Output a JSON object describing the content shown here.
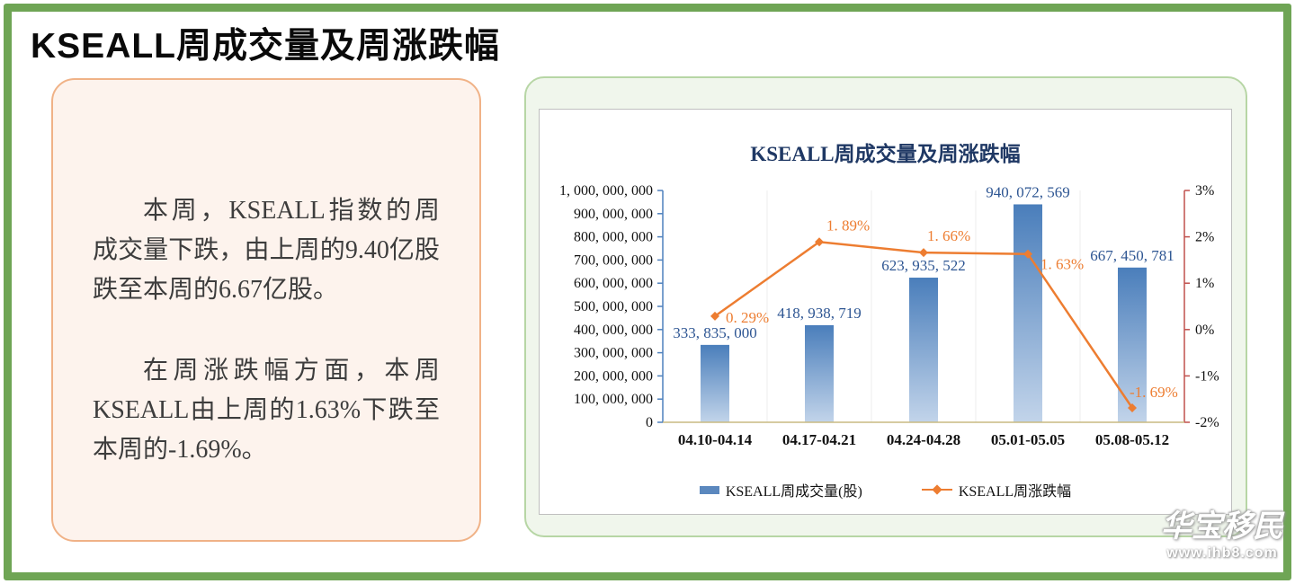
{
  "page": {
    "title": "KSEALL周成交量及周涨跌幅"
  },
  "summary": {
    "p1": "本周，KSEALL指数的周成交量下跌，由上周的9.40亿股跌至本周的6.67亿股。",
    "p2": "在周涨跌幅方面，本周KSEALL由上周的1.63%下跌至本周的-1.69%。"
  },
  "chart_data": {
    "type": "bar",
    "subtype": "bar+line dual-axis",
    "title": "KSEALL周成交量及周涨跌幅",
    "categories": [
      "04.10-04.14",
      "04.17-04.21",
      "04.24-04.28",
      "05.01-05.05",
      "05.08-05.12"
    ],
    "series": [
      {
        "name": "KSEALL周成交量(股)",
        "type": "bar",
        "axis": "left",
        "values": [
          333835000,
          418938719,
          623935522,
          940072569,
          667450781
        ],
        "labels": [
          "333, 835, 000",
          "418, 938, 719",
          "623, 935, 522",
          "940, 072, 569",
          "667, 450, 781"
        ]
      },
      {
        "name": "KSEALL周涨跌幅",
        "type": "line",
        "axis": "right",
        "values": [
          0.29,
          1.89,
          1.66,
          1.63,
          -1.69
        ],
        "labels": [
          "0. 29%",
          "1. 89%",
          "1. 66%",
          "1. 63%",
          "-1. 69%"
        ]
      }
    ],
    "left_axis": {
      "min": 0,
      "max": 1000000000,
      "step": 100000000,
      "tick_labels": [
        "1, 000, 000, 000",
        "900, 000, 000",
        "800, 000, 000",
        "700, 000, 000",
        "600, 000, 000",
        "500, 000, 000",
        "400, 000, 000",
        "300, 000, 000",
        "200, 000, 000",
        "100, 000, 000",
        "0"
      ]
    },
    "right_axis": {
      "min": -2,
      "max": 3,
      "step": 1,
      "tick_labels": [
        "3%",
        "2%",
        "1%",
        "0%",
        "-1%",
        "-2%"
      ]
    },
    "grid": "vertical-only",
    "legend_position": "bottom"
  },
  "colors": {
    "page_border": "#6FA555",
    "card_bg": "#F0F6EC",
    "card_border": "#B7D6A5",
    "summary_bg": "#FDF3ED",
    "summary_border": "#F0B287",
    "bar_top": "#4A7EBB",
    "bar_bottom": "#C2D4EA",
    "bar_label": "#2E5693",
    "line": "#ED7D31",
    "title_navy": "#1F3864",
    "left_axis": "#4F81BD",
    "right_axis": "#C0504D",
    "x_axis": "#C9BA82",
    "gridline": "#ECECEC"
  },
  "watermark": {
    "brand": "华宝移民",
    "url": "www.ihb8.com"
  }
}
